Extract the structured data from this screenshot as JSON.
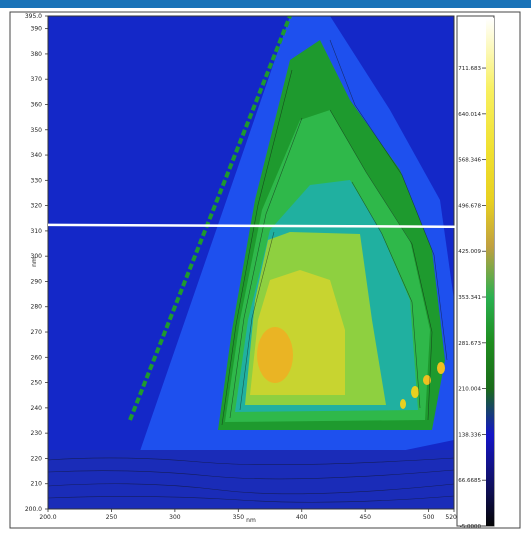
{
  "chart_data": {
    "type": "heatmap",
    "title": "",
    "xlabel": "nm",
    "ylabel": "nm",
    "xlim": [
      200.0,
      520.0
    ],
    "ylim": [
      200.0,
      395.0
    ],
    "x_ticks": [
      {
        "v": 200,
        "t": "200.0"
      },
      {
        "v": 250,
        "t": "250"
      },
      {
        "v": 300,
        "t": "300"
      },
      {
        "v": 350,
        "t": "350"
      },
      {
        "v": 400,
        "t": "400"
      },
      {
        "v": 450,
        "t": "450"
      },
      {
        "v": 500,
        "t": "500"
      },
      {
        "v": 520,
        "t": "520.0"
      }
    ],
    "y_ticks": [
      {
        "v": 200,
        "t": "200.0"
      },
      {
        "v": 210,
        "t": "210"
      },
      {
        "v": 220,
        "t": "220"
      },
      {
        "v": 230,
        "t": "230"
      },
      {
        "v": 240,
        "t": "240"
      },
      {
        "v": 250,
        "t": "250"
      },
      {
        "v": 260,
        "t": "260"
      },
      {
        "v": 270,
        "t": "270"
      },
      {
        "v": 280,
        "t": "280"
      },
      {
        "v": 290,
        "t": "290"
      },
      {
        "v": 300,
        "t": "300"
      },
      {
        "v": 310,
        "t": "310"
      },
      {
        "v": 320,
        "t": "320"
      },
      {
        "v": 330,
        "t": "330"
      },
      {
        "v": 340,
        "t": "340"
      },
      {
        "v": 350,
        "t": "350"
      },
      {
        "v": 360,
        "t": "360"
      },
      {
        "v": 370,
        "t": "370"
      },
      {
        "v": 380,
        "t": "380"
      },
      {
        "v": 390,
        "t": "390"
      },
      {
        "v": 395,
        "t": "395.0"
      }
    ],
    "colorbar": {
      "min": -5.0,
      "max": 790,
      "levels": [
        {
          "value": -5.0,
          "label": "-5.0000"
        },
        {
          "value": 66.6685,
          "label": "66.6685"
        },
        {
          "value": 138.336,
          "label": "138.336"
        },
        {
          "value": 210.004,
          "label": "210.004"
        },
        {
          "value": 281.673,
          "label": "281.673"
        },
        {
          "value": 353.341,
          "label": "353.341"
        },
        {
          "value": 425.009,
          "label": "425.009"
        },
        {
          "value": 496.678,
          "label": "496.678"
        },
        {
          "value": 568.346,
          "label": "568.346"
        },
        {
          "value": 640.014,
          "label": "640.014"
        },
        {
          "value": 711.683,
          "label": "711.683"
        }
      ],
      "colors": [
        "#0a0a0a",
        "#2a2ab4",
        "#1414c8",
        "#1e7a1e",
        "#228b22",
        "#20b2aa",
        "#9acd32",
        "#e8e020",
        "#ffd700",
        "#ffeb3b",
        "#ffffff"
      ]
    },
    "annotations": [
      {
        "kind": "horizontal-line",
        "y": 312,
        "color": "#ffffff"
      }
    ],
    "colors": {
      "background": "#1428c8",
      "level1": "#1e4ee8",
      "level2": "#1e9a2e",
      "level3": "#2ab050",
      "level4": "#20b0a0",
      "level5": "#8ed040",
      "level6": "#c8d830",
      "peak": "#f0b020"
    }
  }
}
